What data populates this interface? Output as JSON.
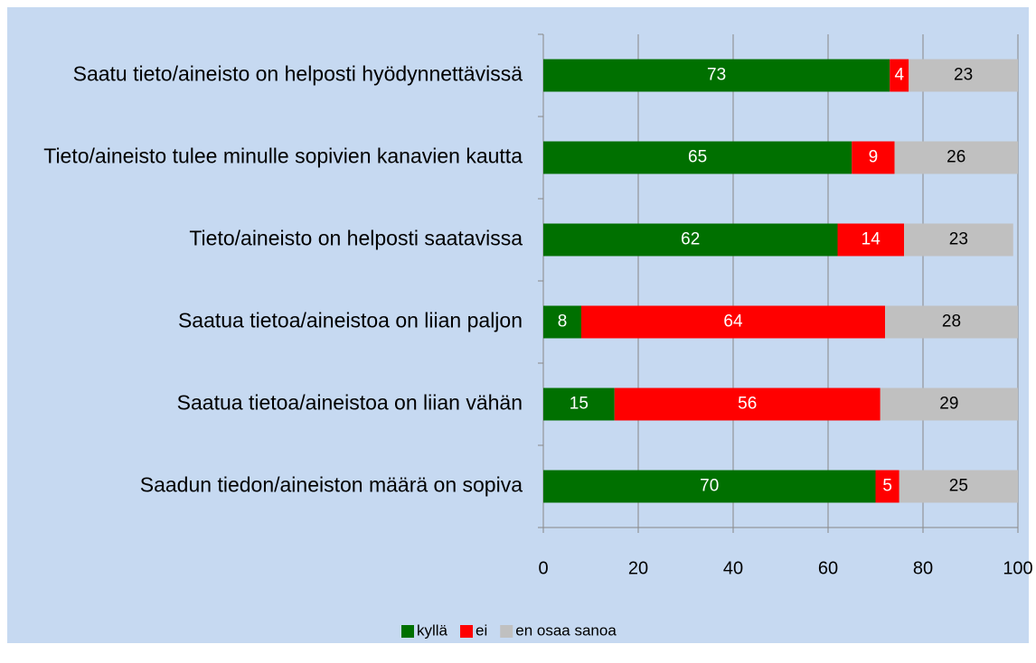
{
  "chart_data": {
    "type": "stacked_bar_horizontal",
    "categories": [
      "Saatu tieto/aineisto on helposti hyödynnettävissä",
      "Tieto/aineisto tulee minulle sopivien kanavien kautta",
      "Tieto/aineisto on helposti saatavissa",
      "Saatua tietoa/aineistoa on liian paljon",
      "Saatua tietoa/aineistoa on liian vähän",
      "Saadun tiedon/aineiston määrä on sopiva"
    ],
    "series": [
      {
        "name": "kyllä",
        "color": "#007000",
        "label_color": "#ffffff",
        "values": [
          73,
          65,
          62,
          8,
          15,
          70
        ]
      },
      {
        "name": "ei",
        "color": "#ff0000",
        "label_color": "#ffffff",
        "values": [
          4,
          9,
          14,
          64,
          56,
          5
        ]
      },
      {
        "name": "en osaa sanoa",
        "color": "#c0c0c0",
        "label_color": "#000000",
        "values": [
          23,
          26,
          23,
          28,
          29,
          25
        ]
      }
    ],
    "xlim": [
      0,
      100
    ],
    "xticks": [
      0,
      20,
      40,
      60,
      80,
      100
    ],
    "grid": true,
    "legend": "bottom"
  }
}
